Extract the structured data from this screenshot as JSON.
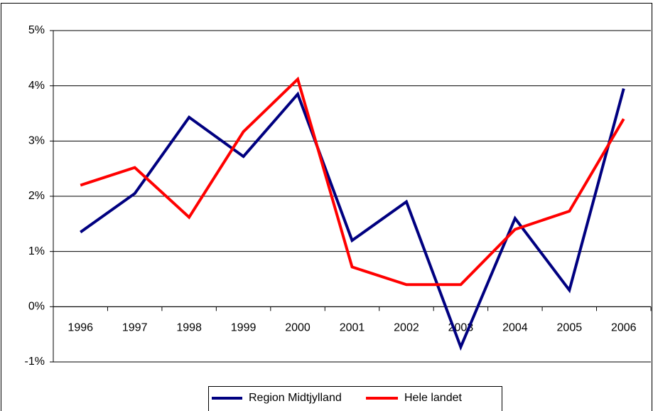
{
  "chart_data": {
    "type": "line",
    "categories": [
      "1996",
      "1997",
      "1998",
      "1999",
      "2000",
      "2001",
      "2002",
      "2003",
      "2004",
      "2005",
      "2006"
    ],
    "series": [
      {
        "name": "Region Midtjylland",
        "color": "#000080",
        "values": [
          1.35,
          2.05,
          3.43,
          2.72,
          3.85,
          1.2,
          1.9,
          -0.73,
          1.6,
          0.3,
          3.95
        ]
      },
      {
        "name": "Hele landet",
        "color": "#ff0000",
        "values": [
          2.2,
          2.52,
          1.62,
          3.17,
          4.12,
          0.72,
          0.4,
          0.4,
          1.4,
          1.73,
          3.4
        ]
      }
    ],
    "ylim": [
      -1,
      5
    ],
    "yticks": [
      {
        "value": -1,
        "label": "-1%"
      },
      {
        "value": 0,
        "label": "0%"
      },
      {
        "value": 1,
        "label": "1%"
      },
      {
        "value": 2,
        "label": "2%"
      },
      {
        "value": 3,
        "label": "3%"
      },
      {
        "value": 4,
        "label": "4%"
      },
      {
        "value": 5,
        "label": "5%"
      }
    ],
    "grid": true,
    "legend": "bottom"
  }
}
